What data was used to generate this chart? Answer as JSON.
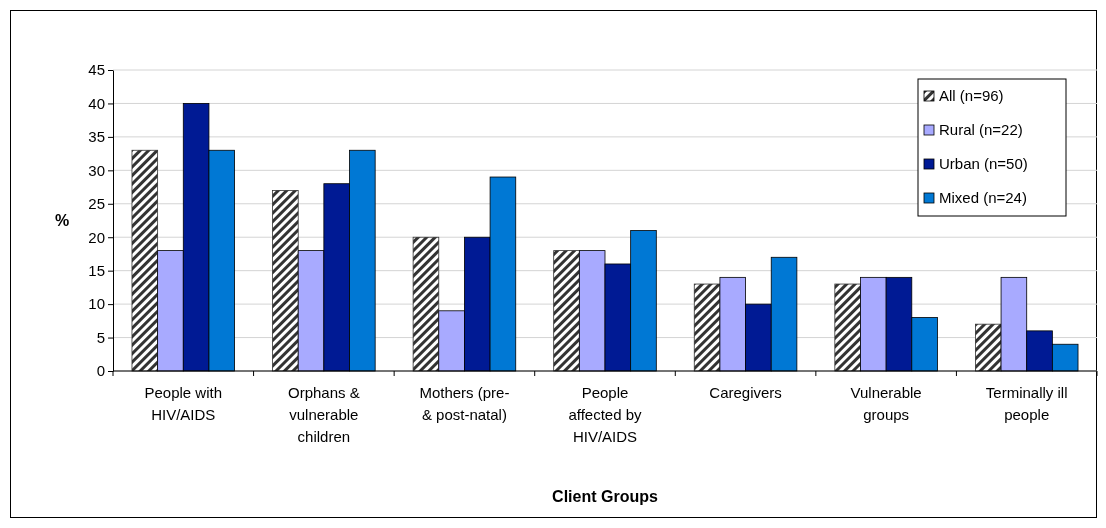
{
  "chart_data": {
    "type": "bar",
    "xlabel": "Client Groups",
    "ylabel": "%",
    "categories": [
      "People with HIV/AIDS",
      "Orphans & vulnerable children",
      "Mothers (pre- & post-natal)",
      "People affected by HIV/AIDS",
      "Caregivers",
      "Vulnerable groups",
      "Terminally ill people"
    ],
    "series": [
      {
        "name": "All (n=96)",
        "color": "#333333",
        "values": [
          33,
          27,
          20,
          18,
          13,
          13,
          7
        ]
      },
      {
        "name": "Rural (n=22)",
        "color": "#a8aaff",
        "values": [
          18,
          18,
          9,
          18,
          14,
          14,
          14
        ]
      },
      {
        "name": "Urban (n=50)",
        "color": "#001a94",
        "values": [
          40,
          28,
          20,
          16,
          10,
          14,
          6
        ]
      },
      {
        "name": "Mixed (n=24)",
        "color": "#0078d4",
        "values": [
          33,
          33,
          29,
          21,
          17,
          8,
          4
        ]
      }
    ],
    "ylim": [
      0,
      45
    ],
    "yticks": [
      0,
      5,
      10,
      15,
      20,
      25,
      30,
      35,
      40,
      45
    ],
    "grid": "y",
    "legend": "top right"
  }
}
